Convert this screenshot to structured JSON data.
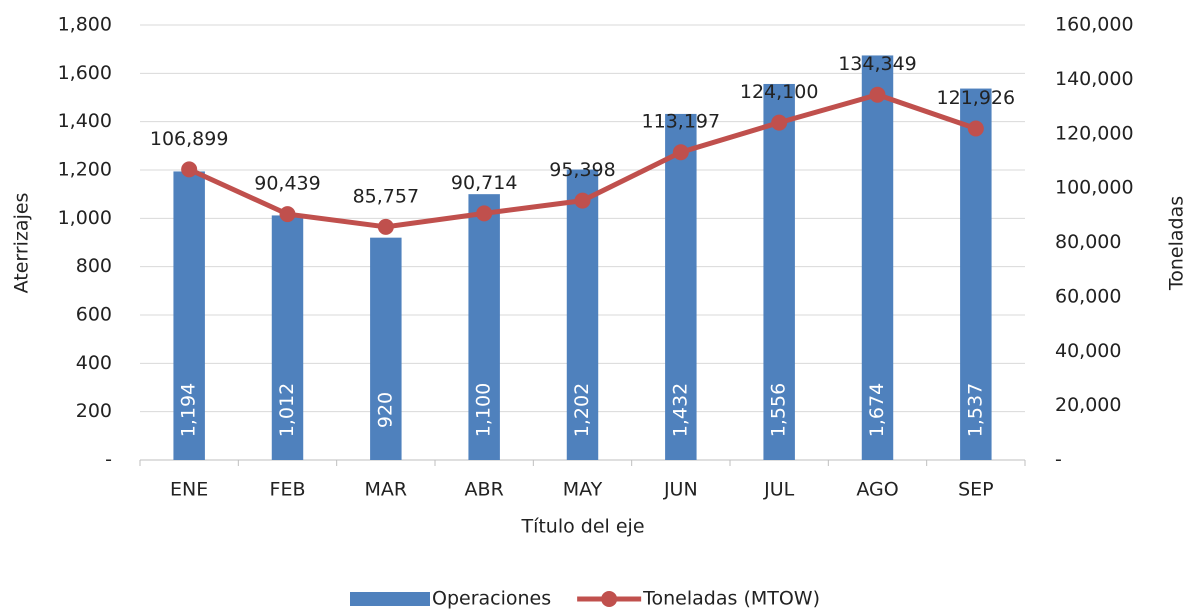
{
  "chart_data": {
    "type": "combo",
    "x_label": "Título del eje",
    "y_label": "Aterrizajes",
    "y2_label": "Toneladas",
    "categories": [
      "ENE",
      "FEB",
      "MAR",
      "ABR",
      "MAY",
      "JUN",
      "JUL",
      "AGO",
      "SEP"
    ],
    "series": [
      {
        "name": "Operaciones",
        "type": "bar",
        "color": "#4f81bd",
        "values": [
          1194,
          1012,
          920,
          1100,
          1202,
          1432,
          1556,
          1674,
          1537
        ],
        "value_labels": [
          "1,194",
          "1,012",
          "920",
          "1,100",
          "1,202",
          "1,432",
          "1,556",
          "1,674",
          "1,537"
        ]
      },
      {
        "name": "Toneladas (MTOW)",
        "type": "line",
        "axis": "y2",
        "color": "#c0504d",
        "values": [
          106899,
          90439,
          85757,
          90714,
          95398,
          113197,
          124100,
          134349,
          121926
        ],
        "value_labels": [
          "106,899",
          "90,439",
          "85,757",
          "90,714",
          "95,398",
          "113,197",
          "124,100",
          "134,349",
          "121,926"
        ]
      }
    ],
    "ylim": [
      0,
      1800
    ],
    "yticks": [
      {
        "value": 0,
        "label": "-"
      },
      200,
      400,
      600,
      800,
      {
        "value": 1000,
        "label": "1,000"
      },
      {
        "value": 1200,
        "label": "1,200"
      },
      {
        "value": 1400,
        "label": "1,400"
      },
      {
        "value": 1600,
        "label": "1,600"
      },
      {
        "value": 1800,
        "label": "1,800"
      }
    ],
    "y2lim": [
      0,
      160000
    ],
    "y2ticks": [
      {
        "value": 0,
        "label": "-"
      },
      {
        "value": 20000,
        "label": "20,000"
      },
      {
        "value": 40000,
        "label": "40,000"
      },
      {
        "value": 60000,
        "label": "60,000"
      },
      {
        "value": 80000,
        "label": "80,000"
      },
      {
        "value": 100000,
        "label": "100,000"
      },
      {
        "value": 120000,
        "label": "120,000"
      },
      {
        "value": 140000,
        "label": "140,000"
      },
      {
        "value": 160000,
        "label": "160,000"
      }
    ],
    "grid": true,
    "legend": "bottom"
  }
}
